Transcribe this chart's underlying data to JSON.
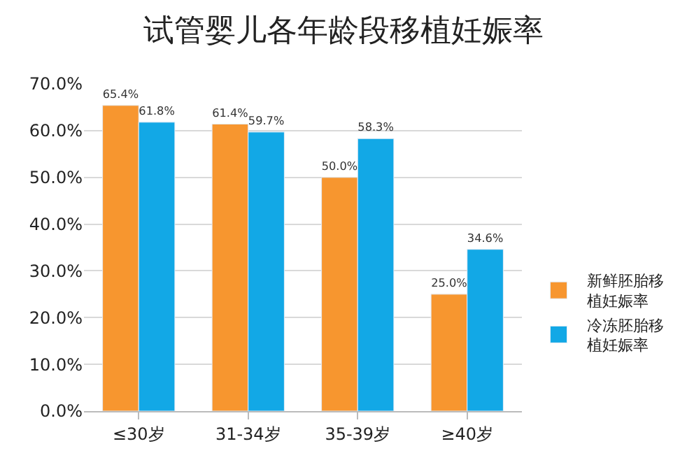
{
  "chart_data": {
    "type": "bar",
    "title": "试管婴儿各年龄段移植妊娠率",
    "categories": [
      "≤30岁",
      "31-34岁",
      "35-39岁",
      "≥40岁"
    ],
    "series": [
      {
        "name": "新鲜胚胎移植妊娠率",
        "color": "#f7962f",
        "values": [
          65.4,
          61.4,
          50.0,
          25.0
        ],
        "value_labels": [
          "65.4%",
          "61.4%",
          "50.0%",
          "25.0%"
        ]
      },
      {
        "name": "冷冻胚胎移植妊娠率",
        "color": "#12a8e6",
        "values": [
          61.8,
          59.7,
          58.3,
          34.6
        ],
        "value_labels": [
          "61.8%",
          "59.7%",
          "58.3%",
          "34.6%"
        ]
      }
    ],
    "ylim": [
      0,
      70
    ],
    "yticks": [
      {
        "value": 0,
        "label": "0.0%"
      },
      {
        "value": 10,
        "label": "10.0%"
      },
      {
        "value": 20,
        "label": "20.0%"
      },
      {
        "value": 30,
        "label": "30.0%"
      },
      {
        "value": 40,
        "label": "40.0%"
      },
      {
        "value": 50,
        "label": "50.0%"
      },
      {
        "value": 60,
        "label": "60.0%"
      },
      {
        "value": 70,
        "label": "70.0%"
      }
    ],
    "grid": "y",
    "legend": "right"
  }
}
